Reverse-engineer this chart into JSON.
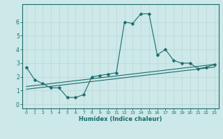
{
  "xlabel": "Humidex (Indice chaleur)",
  "xlim": [
    -0.5,
    23.5
  ],
  "ylim": [
    -0.3,
    7.3
  ],
  "xticks": [
    0,
    1,
    2,
    3,
    4,
    5,
    6,
    7,
    8,
    9,
    10,
    11,
    12,
    13,
    14,
    15,
    16,
    17,
    18,
    19,
    20,
    21,
    22,
    23
  ],
  "yticks": [
    0,
    1,
    2,
    3,
    4,
    5,
    6
  ],
  "bg_color": "#cce8e8",
  "line_color": "#1a6b6b",
  "grid_color": "#c0d8d8",
  "line1_x": [
    0,
    1,
    2,
    3,
    4,
    5,
    6,
    7,
    8,
    9,
    10,
    11,
    12,
    13,
    14,
    15,
    16,
    17,
    18,
    19,
    20,
    21,
    22,
    23
  ],
  "line1_y": [
    2.7,
    1.8,
    1.5,
    1.2,
    1.2,
    0.5,
    0.5,
    0.7,
    2.0,
    2.1,
    2.2,
    2.3,
    6.0,
    5.9,
    6.6,
    6.6,
    3.6,
    4.0,
    3.2,
    3.0,
    3.0,
    2.6,
    2.7,
    2.9
  ],
  "line2_x": [
    0,
    1,
    2,
    3,
    4,
    5,
    6,
    7,
    8,
    9,
    10,
    11,
    12,
    13,
    14,
    15,
    16,
    17,
    18,
    19,
    20,
    21,
    22,
    23
  ],
  "line2_y": [
    1.3,
    1.37,
    1.44,
    1.51,
    1.58,
    1.65,
    1.72,
    1.79,
    1.86,
    1.93,
    2.0,
    2.07,
    2.14,
    2.21,
    2.28,
    2.35,
    2.42,
    2.49,
    2.56,
    2.63,
    2.7,
    2.77,
    2.84,
    2.91
  ],
  "line3_x": [
    0,
    1,
    2,
    3,
    4,
    5,
    6,
    7,
    8,
    9,
    10,
    11,
    12,
    13,
    14,
    15,
    16,
    17,
    18,
    19,
    20,
    21,
    22,
    23
  ],
  "line3_y": [
    1.1,
    1.17,
    1.24,
    1.31,
    1.38,
    1.45,
    1.52,
    1.59,
    1.66,
    1.73,
    1.8,
    1.87,
    1.94,
    2.01,
    2.08,
    2.15,
    2.22,
    2.29,
    2.36,
    2.43,
    2.5,
    2.57,
    2.64,
    2.71
  ]
}
